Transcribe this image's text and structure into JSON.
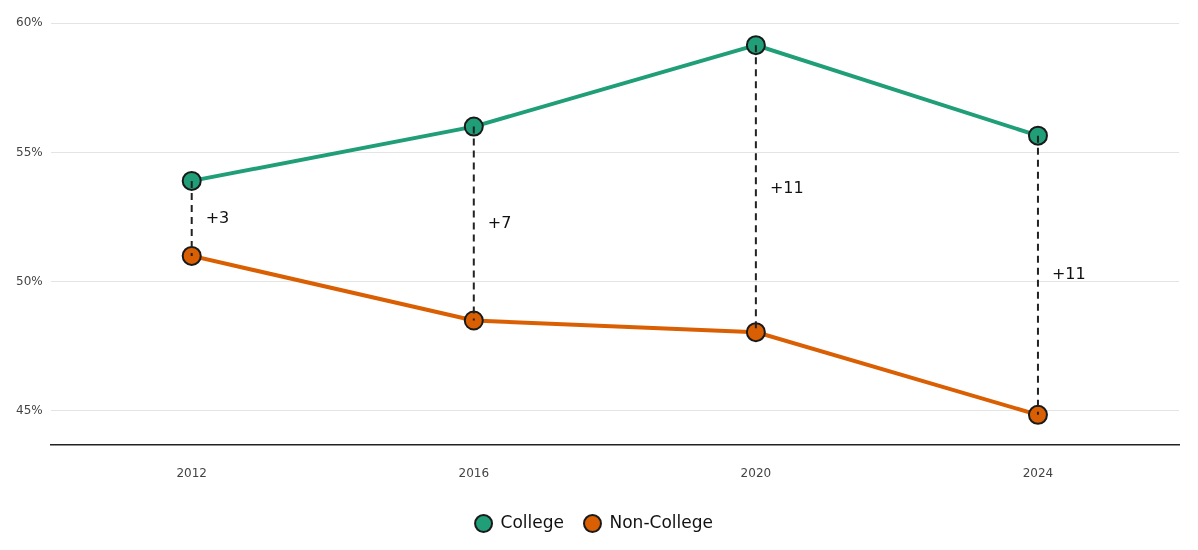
{
  "chart_data": {
    "type": "line",
    "categories": [
      "2012",
      "2016",
      "2020",
      "2024"
    ],
    "series": [
      {
        "name": "College",
        "color": "#1f9e77",
        "values": [
          53.9,
          56.0,
          59.15,
          55.65
        ]
      },
      {
        "name": "Non-College",
        "color": "#d95f02",
        "values": [
          51.0,
          48.5,
          48.05,
          44.85
        ],
        "errors": [
          [
            51.0,
            53.9
          ],
          [
            48.5,
            56.0
          ],
          [
            48.05,
            59.15
          ],
          [
            44.85,
            55.65
          ]
        ]
      }
    ],
    "ylim": [
      43.7,
      60
    ],
    "yticks": [
      {
        "value": 45,
        "label": "45%"
      },
      {
        "value": 50,
        "label": "50%"
      },
      {
        "value": 55,
        "label": "55%"
      },
      {
        "value": 60,
        "label": "60%"
      }
    ],
    "annotations": [
      "+3",
      "+7",
      "+11",
      "+11"
    ],
    "grid": "y",
    "legend": "bottom",
    "marker": "circle",
    "line_style": "solid"
  }
}
